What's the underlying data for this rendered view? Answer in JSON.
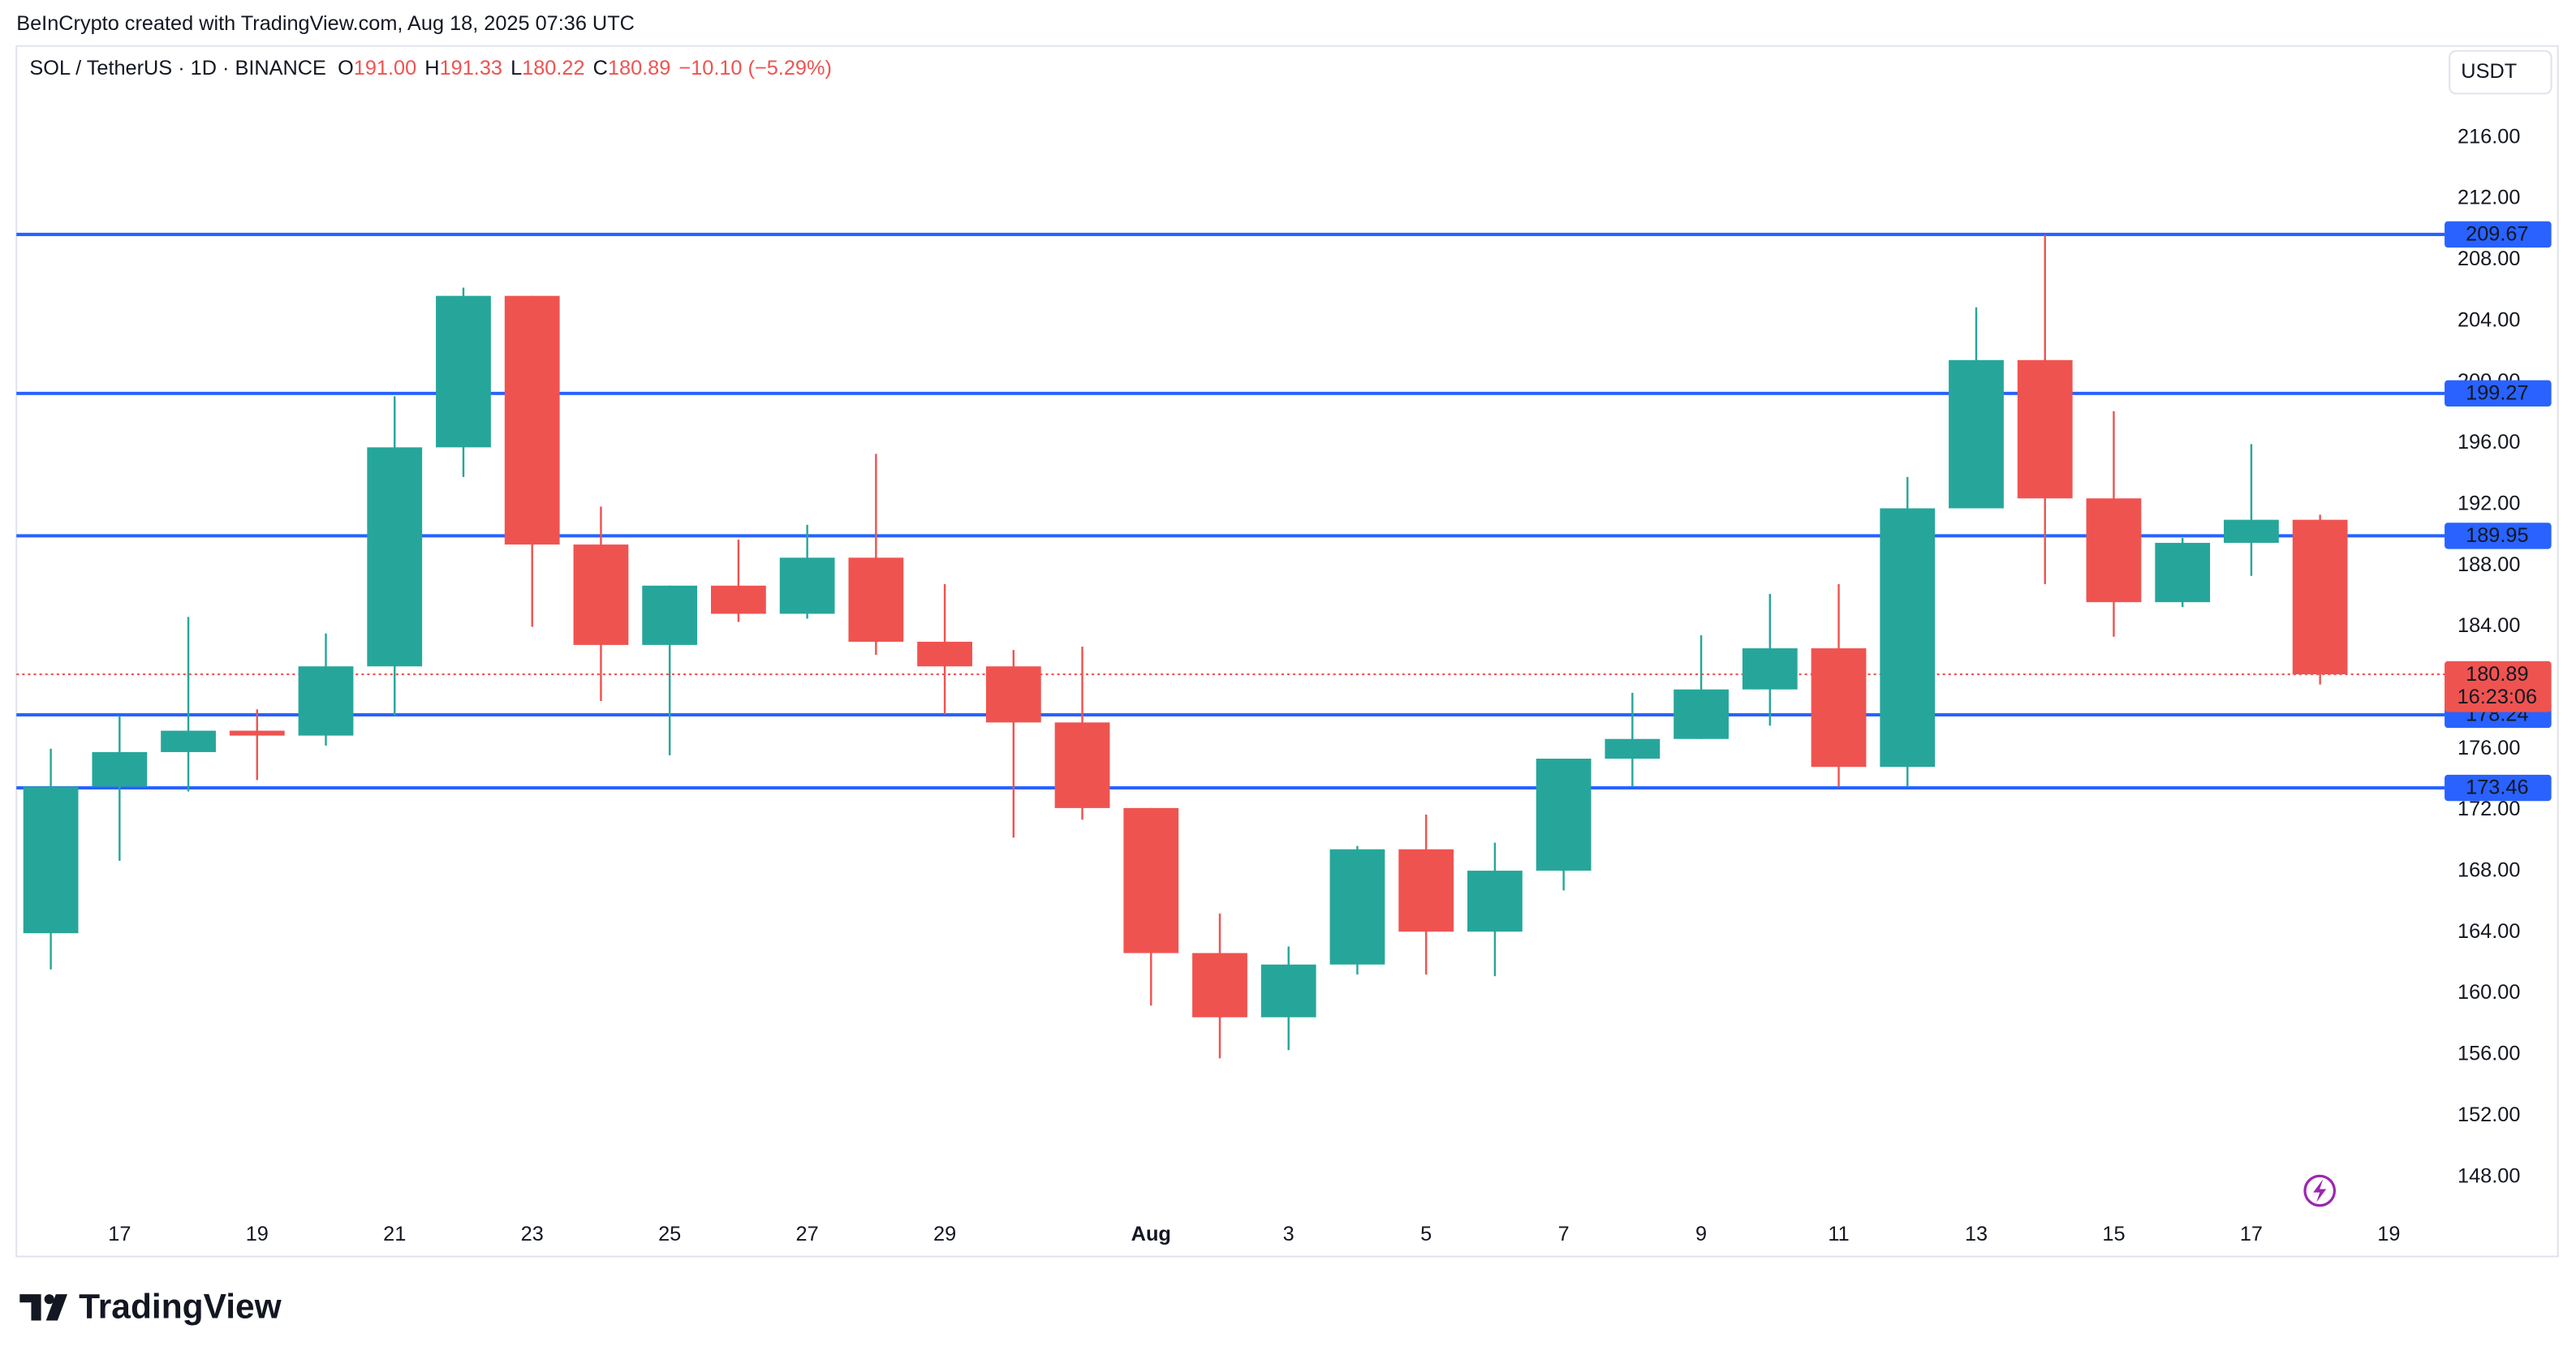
{
  "header": {
    "attribution": "BeInCrypto created with TradingView.com, Aug 18, 2025 07:36 UTC"
  },
  "chart_data": {
    "type": "candlestick",
    "symbol": "SOL / TetherUS · 1D · BINANCE",
    "legend": [
      {
        "label": "O",
        "value": "191.00"
      },
      {
        "label": "H",
        "value": "191.33"
      },
      {
        "label": "L",
        "value": "180.22"
      },
      {
        "label": "C",
        "value": "180.89"
      }
    ],
    "change": "−10.10 (−5.29%)",
    "currency": "USDT",
    "categories": [
      null,
      "17",
      null,
      "19",
      null,
      "21",
      null,
      "23",
      null,
      "25",
      null,
      "27",
      null,
      "29",
      null,
      null,
      "Aug",
      null,
      "3",
      null,
      "5",
      null,
      "7",
      null,
      "9",
      null,
      "11",
      null,
      "13",
      null,
      "15",
      null,
      "17",
      null,
      "19"
    ],
    "open": [
      163.95,
      173.54,
      175.8,
      177.2,
      176.88,
      181.41,
      195.74,
      205.65,
      189.38,
      182.81,
      186.69,
      184.85,
      188.52,
      183.02,
      181.41,
      177.74,
      172.14,
      162.65,
      158.45,
      161.9,
      169.44,
      164.05,
      168.04,
      175.37,
      176.66,
      179.9,
      182.59,
      174.83,
      191.75,
      201.45,
      192.4,
      185.61,
      189.49,
      191.0,
      null
    ],
    "high": [
      176.02,
      178.17,
      184.64,
      178.6,
      183.56,
      199.08,
      206.19,
      205.65,
      191.86,
      186.69,
      189.7,
      190.67,
      195.31,
      186.79,
      182.48,
      182.7,
      172.14,
      165.24,
      163.08,
      169.66,
      171.71,
      169.87,
      175.37,
      179.68,
      183.45,
      186.15,
      186.79,
      193.8,
      204.9,
      209.64,
      198.11,
      189.81,
      195.95,
      191.33,
      null
    ],
    "low": [
      161.58,
      168.69,
      173.22,
      173.97,
      176.23,
      178.17,
      193.8,
      184.0,
      179.14,
      175.59,
      184.32,
      184.53,
      182.16,
      178.28,
      170.2,
      171.38,
      159.21,
      155.76,
      156.3,
      161.25,
      161.25,
      161.14,
      166.75,
      173.54,
      176.66,
      177.53,
      173.54,
      173.54,
      191.75,
      186.79,
      183.35,
      185.29,
      187.33,
      180.22,
      null
    ],
    "close": [
      173.54,
      175.8,
      177.2,
      176.88,
      181.41,
      195.74,
      205.65,
      189.38,
      182.81,
      186.69,
      184.85,
      188.52,
      183.02,
      181.41,
      177.74,
      172.14,
      162.65,
      158.45,
      161.9,
      169.44,
      164.05,
      168.04,
      175.37,
      176.66,
      179.9,
      182.59,
      174.83,
      191.75,
      201.45,
      192.4,
      185.61,
      189.49,
      191.0,
      180.89,
      null
    ],
    "up_color": "#26a69a",
    "down_color": "#ef5350",
    "ylim": [
      142.8,
      222.0
    ],
    "yticks": [
      {
        "value": 148,
        "label": "148.00"
      },
      {
        "value": 152,
        "label": "152.00"
      },
      {
        "value": 156,
        "label": "156.00"
      },
      {
        "value": 160,
        "label": "160.00"
      },
      {
        "value": 164,
        "label": "164.00"
      },
      {
        "value": 168,
        "label": "168.00"
      },
      {
        "value": 172,
        "label": "172.00"
      },
      {
        "value": 176,
        "label": "176.00"
      },
      {
        "value": 180,
        "label": "180.00"
      },
      {
        "value": 184,
        "label": "184.00"
      },
      {
        "value": 188,
        "label": "188.00"
      },
      {
        "value": 192,
        "label": "192.00"
      },
      {
        "value": 196,
        "label": "196.00"
      },
      {
        "value": 200,
        "label": "200.00"
      },
      {
        "value": 204,
        "label": "204.00"
      },
      {
        "value": 208,
        "label": "208.00"
      },
      {
        "value": 212,
        "label": "212.00"
      },
      {
        "value": 216,
        "label": "216.00"
      }
    ],
    "levels": {
      "color": "#2962ff",
      "values": [
        209.67,
        199.27,
        189.95,
        178.24,
        173.46
      ]
    },
    "last_price": {
      "value": 180.89,
      "countdown": "16:23:06",
      "color": "#ef5350"
    }
  },
  "footer": {
    "brand": "TradingView"
  }
}
